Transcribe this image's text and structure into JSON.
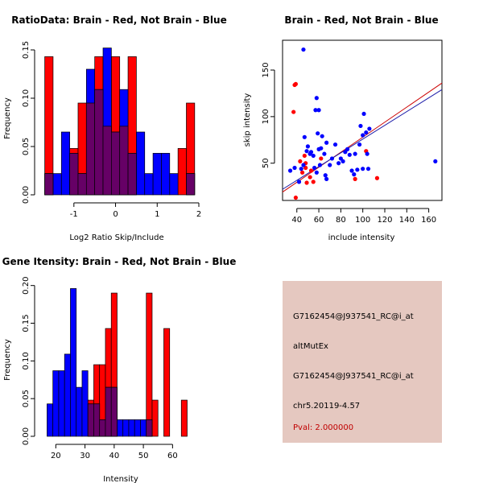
{
  "colors": {
    "red": "#ff0000",
    "blue": "#0000ff",
    "overlap": "#660066",
    "line_red": "#cc0000",
    "line_blue": "#1a1aa8",
    "info_bg": "#e5c8c0",
    "pval": "#c00000"
  },
  "chart_data": [
    {
      "id": "ratio",
      "type": "histogram",
      "title": "RatioData: Brain - Red, Not Brain - Blue",
      "xlabel": "Log2 Ratio Skip/Include",
      "ylabel": "Frequency",
      "xlim": [
        -1.75,
        2.0
      ],
      "ylim": [
        0,
        0.16
      ],
      "xticks": [
        -1,
        0,
        1,
        2
      ],
      "yticks": [
        0.0,
        0.05,
        0.1,
        0.15
      ],
      "ytick_labels": [
        "0.00",
        "0.05",
        "0.10",
        "0.15"
      ],
      "bin_edges": [
        -1.7,
        -1.5,
        -1.3,
        -1.1,
        -0.9,
        -0.7,
        -0.5,
        -0.3,
        -0.1,
        0.1,
        0.3,
        0.5,
        0.7,
        0.9,
        1.1,
        1.3,
        1.5,
        1.7,
        1.9
      ],
      "series": [
        {
          "name": "Brain",
          "color": "red",
          "values": [
            0.143,
            0,
            0,
            0.048,
            0.095,
            0.095,
            0.143,
            0.071,
            0.143,
            0.071,
            0.143,
            0,
            0,
            0,
            0,
            0,
            0.048,
            0.095
          ]
        },
        {
          "name": "Not Brain",
          "color": "blue",
          "values": [
            0.022,
            0.022,
            0.065,
            0.043,
            0.022,
            0.13,
            0.109,
            0.152,
            0.065,
            0.109,
            0.043,
            0.065,
            0.022,
            0.043,
            0.043,
            0.022,
            0,
            0.022
          ]
        }
      ]
    },
    {
      "id": "scatter",
      "type": "scatter",
      "title": "Brain - Red, Not Brain - Blue",
      "xlabel": "include intensity",
      "ylabel": "skip intensity",
      "xlim": [
        27,
        172
      ],
      "ylim": [
        10,
        182
      ],
      "xticks": [
        40,
        60,
        80,
        100,
        120,
        140,
        160
      ],
      "yticks": [
        50,
        100,
        150
      ],
      "series": [
        {
          "name": "Brain",
          "color": "red",
          "points": [
            [
              38,
              134
            ],
            [
              39,
              135
            ],
            [
              37,
              105
            ],
            [
              39,
              13
            ],
            [
              43,
              52
            ],
            [
              45,
              40
            ],
            [
              47,
              58
            ],
            [
              48,
              45
            ],
            [
              48,
              50
            ],
            [
              49,
              29
            ],
            [
              52,
              35
            ],
            [
              53,
              42
            ],
            [
              55,
              30
            ],
            [
              62,
              55
            ],
            [
              93,
              33
            ],
            [
              103,
              63
            ],
            [
              113,
              34
            ]
          ]
        },
        {
          "name": "Not Brain",
          "color": "blue",
          "points": [
            [
              46,
              172
            ],
            [
              34,
              42
            ],
            [
              38,
              45
            ],
            [
              42,
              30
            ],
            [
              44,
              44
            ],
            [
              46,
              48
            ],
            [
              47,
              78
            ],
            [
              49,
              63
            ],
            [
              50,
              68
            ],
            [
              52,
              60
            ],
            [
              53,
              62
            ],
            [
              55,
              58
            ],
            [
              56,
              45
            ],
            [
              57,
              107
            ],
            [
              58,
              120
            ],
            [
              58,
              40
            ],
            [
              59,
              82
            ],
            [
              60,
              65
            ],
            [
              60,
              107
            ],
            [
              61,
              48
            ],
            [
              62,
              66
            ],
            [
              63,
              79
            ],
            [
              65,
              60
            ],
            [
              66,
              37
            ],
            [
              67,
              33
            ],
            [
              67,
              72
            ],
            [
              70,
              48
            ],
            [
              72,
              55
            ],
            [
              75,
              70
            ],
            [
              78,
              50
            ],
            [
              80,
              55
            ],
            [
              82,
              52
            ],
            [
              84,
              62
            ],
            [
              86,
              65
            ],
            [
              88,
              59
            ],
            [
              90,
              42
            ],
            [
              92,
              38
            ],
            [
              93,
              60
            ],
            [
              95,
              43
            ],
            [
              97,
              70
            ],
            [
              98,
              90
            ],
            [
              100,
              80
            ],
            [
              101,
              103
            ],
            [
              103,
              83
            ],
            [
              104,
              60
            ],
            [
              105,
              44
            ],
            [
              106,
              87
            ],
            [
              100,
              44
            ],
            [
              166,
              52
            ]
          ]
        }
      ],
      "fit_lines": [
        {
          "name": "Brain fit",
          "color": "line_red",
          "x": [
            27,
            172
          ],
          "y": [
            19,
            136
          ]
        },
        {
          "name": "Not Brain fit",
          "color": "line_blue",
          "x": [
            27,
            172
          ],
          "y": [
            22,
            129
          ]
        }
      ]
    },
    {
      "id": "intensity",
      "type": "histogram",
      "title": "Gene Itensity: Brain - Red, Not Brain - Blue",
      "xlabel": "Intensity",
      "ylabel": "Frequency",
      "xlim": [
        15.5,
        69
      ],
      "ylim": [
        0,
        0.205
      ],
      "xticks": [
        20,
        30,
        40,
        50,
        60
      ],
      "yticks": [
        0.0,
        0.05,
        0.1,
        0.15,
        0.2
      ],
      "ytick_labels": [
        "0.00",
        "0.05",
        "0.10",
        "0.15",
        "0.20"
      ],
      "bin_edges": [
        17,
        19,
        21,
        23,
        25,
        27,
        29,
        31,
        33,
        35,
        37,
        39,
        41,
        43,
        45,
        47,
        49,
        51,
        53,
        55,
        57,
        59,
        61,
        63,
        65,
        67
      ],
      "series": [
        {
          "name": "Brain",
          "color": "red",
          "values": [
            0,
            0,
            0,
            0,
            0,
            0,
            0,
            0.048,
            0.095,
            0.095,
            0.143,
            0.19,
            0,
            0,
            0,
            0,
            0,
            0.19,
            0.048,
            0,
            0.143,
            0,
            0,
            0.048,
            0
          ]
        },
        {
          "name": "Not Brain",
          "color": "blue",
          "values": [
            0.043,
            0.087,
            0.087,
            0.109,
            0.196,
            0.065,
            0.087,
            0.043,
            0.043,
            0.022,
            0.065,
            0.065,
            0.022,
            0.022,
            0.022,
            0.022,
            0.022,
            0.022,
            0,
            0,
            0,
            0,
            0,
            0,
            0
          ]
        }
      ]
    }
  ],
  "info": {
    "line1": "G7162454@J937541_RC@i_at",
    "line2": "altMutEx",
    "line3": "G7162454@J937541_RC@i_at",
    "line4": "chr5.20119-4.57",
    "pval": "Pval: 2.000000"
  }
}
